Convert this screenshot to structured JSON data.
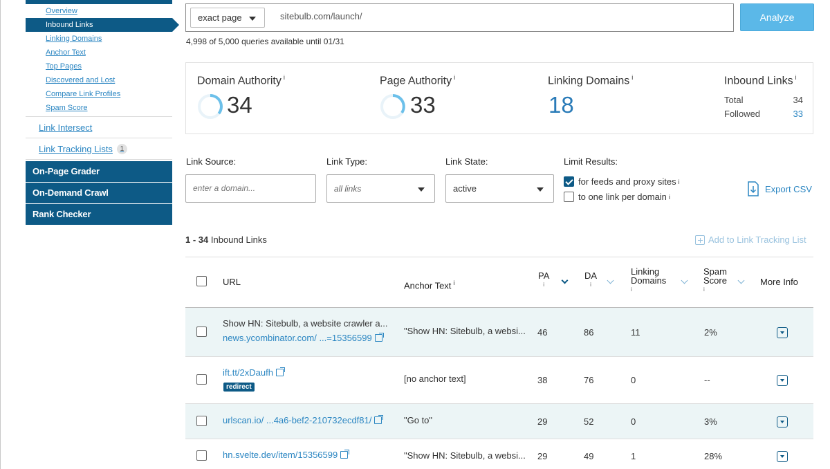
{
  "sidebar": {
    "sub_items": [
      "Overview",
      "Inbound Links",
      "Linking Domains",
      "Anchor Text",
      "Top Pages",
      "Discovered and Lost",
      "Compare Link Profiles",
      "Spam Score"
    ],
    "active_sub_item": "Inbound Links",
    "link_intersect": "Link Intersect",
    "link_tracking": "Link Tracking Lists",
    "link_tracking_count": "1",
    "blocks": [
      "On-Page Grader",
      "On-Demand Crawl",
      "Rank Checker"
    ]
  },
  "query": {
    "scope": "exact page",
    "url": "sitebulb.com/launch/",
    "analyze_label": "Analyze",
    "quota": "4,998 of 5,000 queries available until 01/31"
  },
  "metrics": {
    "domain_authority": {
      "label": "Domain Authority",
      "value": "34"
    },
    "page_authority": {
      "label": "Page Authority",
      "value": "33"
    },
    "linking_domains": {
      "label": "Linking Domains",
      "value": "18"
    },
    "inbound_links": {
      "label": "Inbound Links",
      "total_label": "Total",
      "total_value": "34",
      "followed_label": "Followed",
      "followed_value": "33"
    },
    "info_glyph": "i"
  },
  "filters": {
    "link_source_label": "Link Source:",
    "link_source_placeholder": "enter a domain...",
    "link_type_label": "Link Type:",
    "link_type_value": "all links",
    "link_state_label": "Link State:",
    "link_state_value": "active",
    "limit_label": "Limit Results:",
    "limit_opt1": "for feeds and proxy sites",
    "limit_opt1_checked": true,
    "limit_opt2": "to one link per domain",
    "limit_opt2_checked": false,
    "export_label": "Export CSV"
  },
  "results": {
    "range": "1 - 34",
    "range_suffix": "Inbound Links",
    "add_to_list": "Add to Link Tracking List",
    "columns": {
      "url": "URL",
      "anchor": "Anchor Text",
      "pa": "PA",
      "da": "DA",
      "linking_domains_1": "Linking",
      "linking_domains_2": "Domains",
      "spam_1": "Spam",
      "spam_2": "Score",
      "more": "More Info"
    },
    "rows": [
      {
        "title": "Show HN: Sitebulb, a website crawler a...",
        "url": "news.ycombinator.com/ ...=15356599",
        "anchor": "\"Show HN: Sitebulb, a websi...",
        "pa": "46",
        "da": "86",
        "ld": "11",
        "spam": "2%"
      },
      {
        "title": "",
        "url": "ift.tt/2xDaufh",
        "tag": "redirect",
        "anchor": "[no anchor text]",
        "pa": "38",
        "da": "76",
        "ld": "0",
        "spam": "--"
      },
      {
        "title": "",
        "url": "urlscan.io/ ...4a6-bef2-210732ecdf81/",
        "anchor": "\"Go to\"",
        "pa": "29",
        "da": "52",
        "ld": "0",
        "spam": "3%"
      },
      {
        "title": "",
        "url": "hn.svelte.dev/item/15356599",
        "anchor": "\"Show HN: Sitebulb, a websi...",
        "pa": "29",
        "da": "49",
        "ld": "1",
        "spam": "28%"
      }
    ]
  },
  "colors": {
    "brand_navy": "#0d5a86",
    "link_blue": "#2b86c2",
    "analyze_blue": "#5bb8e8",
    "row_shade": "#ecf5f6"
  }
}
